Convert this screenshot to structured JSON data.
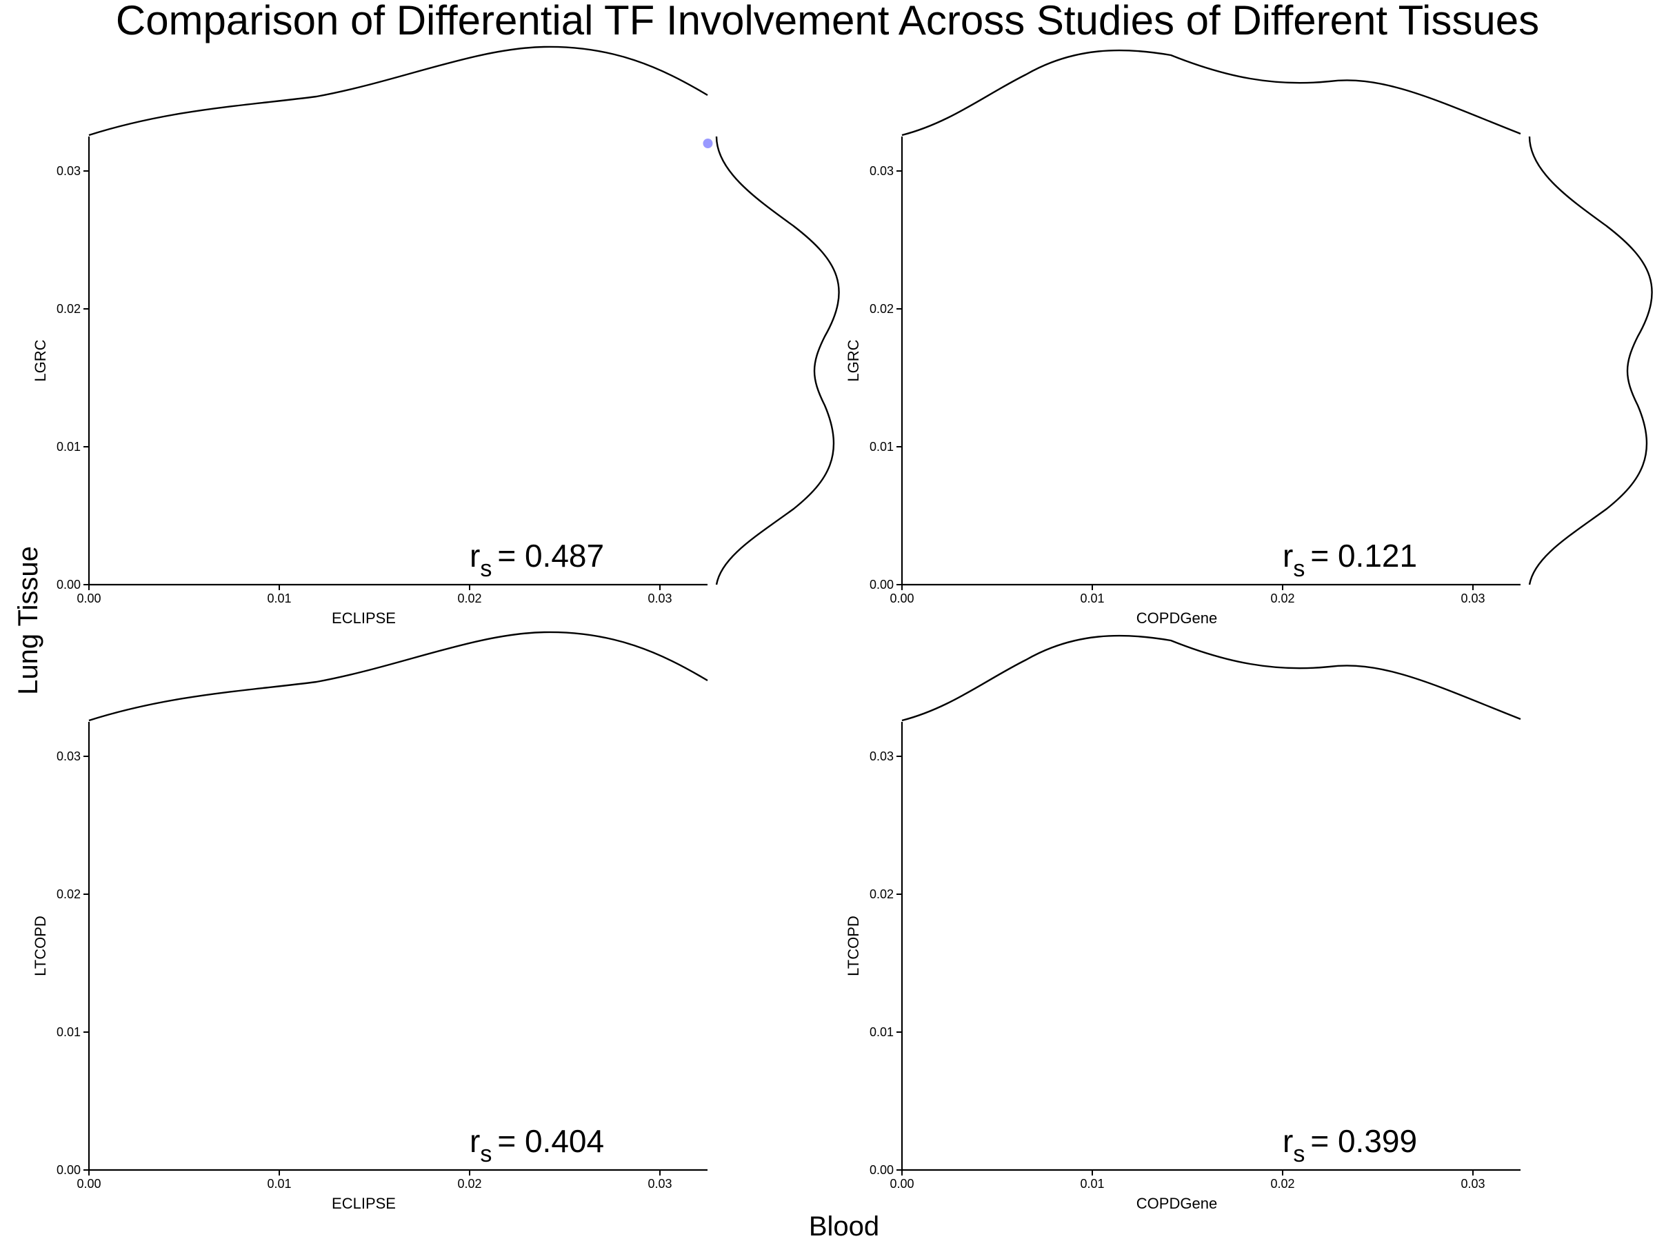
{
  "figure": {
    "title": "Comparison of Differential TF Involvement Across Studies of Different Tissues",
    "supxlabel": "Blood",
    "supylabel": "Lung Tissue"
  },
  "colors": {
    "axis": "#000000",
    "density": "#000000",
    "point": "#8080ff"
  },
  "chart_data": [
    {
      "type": "scatter",
      "xlabel": "ECLIPSE",
      "ylabel": "LGRC",
      "xlim": [
        0,
        0.0325
      ],
      "ylim": [
        0,
        0.0325
      ],
      "xticks": [
        "0.00",
        "0.01",
        "0.02",
        "0.03"
      ],
      "yticks": [
        "0.00",
        "0.01",
        "0.02",
        "0.03"
      ],
      "annotation": {
        "symbol": "r",
        "subscript": "s",
        "value": "= 0.487"
      },
      "points": [
        {
          "x": 0.0323,
          "y": 0.0323
        }
      ],
      "x_density_shape": "rising, peak near x=0.024",
      "y_density_shape": "bimodal, peaks near y=0.012 and y=0.022"
    },
    {
      "type": "scatter",
      "xlabel": "COPDGene",
      "ylabel": "LGRC",
      "xlim": [
        0,
        0.0325
      ],
      "ylim": [
        0,
        0.0325
      ],
      "xticks": [
        "0.00",
        "0.01",
        "0.02",
        "0.03"
      ],
      "yticks": [
        "0.00",
        "0.01",
        "0.02",
        "0.03"
      ],
      "annotation": {
        "symbol": "r",
        "subscript": "s",
        "value": "= 0.121"
      },
      "points": [],
      "x_density_shape": "peak near x=0.011, secondary bump near x=0.025",
      "y_density_shape": "bimodal, peaks near y=0.012 and y=0.022"
    },
    {
      "type": "scatter",
      "xlabel": "ECLIPSE",
      "ylabel": "LTCOPD",
      "xlim": [
        0,
        0.0325
      ],
      "ylim": [
        0,
        0.0325
      ],
      "xticks": [
        "0.00",
        "0.01",
        "0.02",
        "0.03"
      ],
      "yticks": [
        "0.00",
        "0.01",
        "0.02",
        "0.03"
      ],
      "annotation": {
        "symbol": "r",
        "subscript": "s",
        "value": "= 0.404"
      },
      "points": [],
      "x_density_shape": "rising, peak near x=0.024"
    },
    {
      "type": "scatter",
      "xlabel": "COPDGene",
      "ylabel": "LTCOPD",
      "xlim": [
        0,
        0.0325
      ],
      "ylim": [
        0,
        0.0325
      ],
      "xticks": [
        "0.00",
        "0.01",
        "0.02",
        "0.03"
      ],
      "yticks": [
        "0.00",
        "0.01",
        "0.02",
        "0.03"
      ],
      "annotation": {
        "symbol": "r",
        "subscript": "s",
        "value": "= 0.399"
      },
      "points": [],
      "x_density_shape": "peak near x=0.011, secondary bump near x=0.025"
    }
  ]
}
